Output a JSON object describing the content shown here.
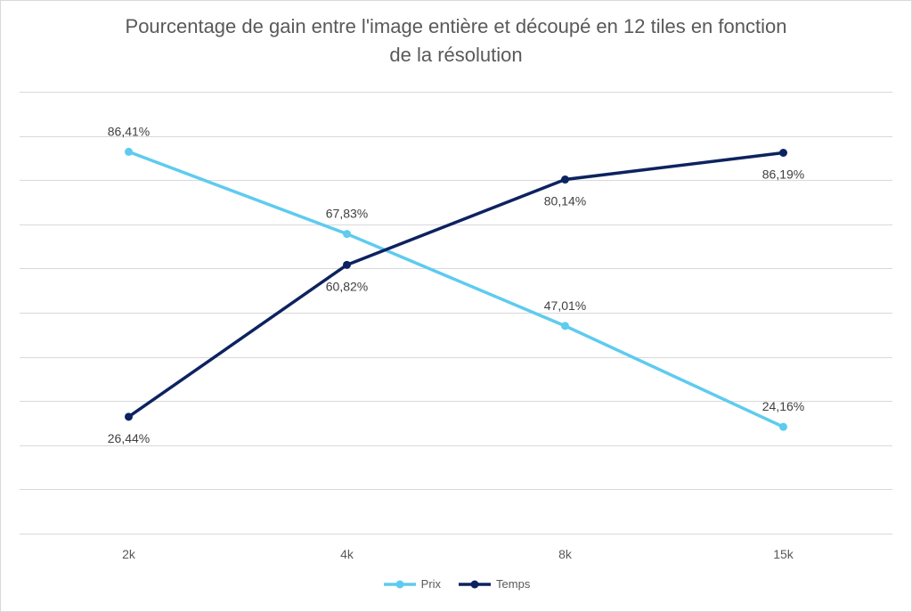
{
  "chart_data": {
    "type": "line",
    "title_line1": "Pourcentage de gain entre l'image entière et découpé en 12 tiles en fonction",
    "title_line2": "de la résolution",
    "categories": [
      "2k",
      "4k",
      "8k",
      "15k"
    ],
    "ylim": [
      0,
      100
    ],
    "grid": true,
    "legend_position": "bottom",
    "series": [
      {
        "name": "Prix",
        "color": "#5ecbef",
        "values": [
          86.41,
          67.83,
          47.01,
          24.16
        ],
        "labels": [
          "86,41%",
          "67,83%",
          "47,01%",
          "24,16%"
        ],
        "label_placement": [
          "above",
          "above",
          "above",
          "above"
        ]
      },
      {
        "name": "Temps",
        "color": "#0d2260",
        "values": [
          26.44,
          60.82,
          80.14,
          86.19
        ],
        "labels": [
          "26,44%",
          "60,82%",
          "80,14%",
          "86,19%"
        ],
        "label_placement": [
          "below",
          "below",
          "below",
          "below"
        ]
      }
    ]
  }
}
